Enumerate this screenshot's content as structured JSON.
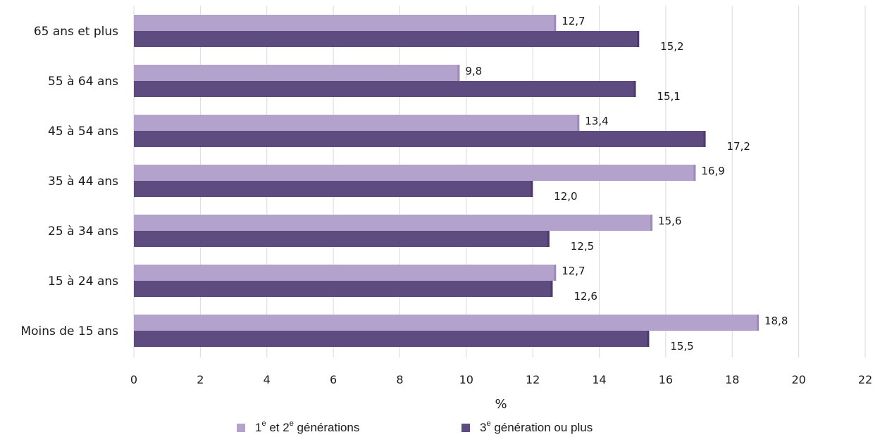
{
  "chart_data": {
    "type": "bar",
    "orientation": "horizontal",
    "categories": [
      "65 ans et plus",
      "55 à 64 ans",
      "45 à 54 ans",
      "35 à 44 ans",
      "25 à 34 ans",
      "15 à 24 ans",
      "Moins de 15 ans"
    ],
    "series": [
      {
        "name": "1e et 2e générations",
        "values": [
          12.7,
          9.8,
          13.4,
          16.9,
          15.6,
          12.7,
          18.8
        ],
        "labels": [
          "12,7",
          "9,8",
          "13,4",
          "16,9",
          "15,6",
          "12,7",
          "18,8"
        ],
        "color": "#b3a2cb"
      },
      {
        "name": "3e génération ou plus",
        "values": [
          15.2,
          15.1,
          17.2,
          12.0,
          12.5,
          12.6,
          15.5
        ],
        "labels": [
          "15,2",
          "15,1",
          "17,2",
          "12,0",
          "12,5",
          "12,6",
          "15,5"
        ],
        "color": "#5e4b7f"
      }
    ],
    "xlabel": "%",
    "ylabel": "",
    "xlim": [
      0,
      22
    ],
    "xticks": [
      0,
      2,
      4,
      6,
      8,
      10,
      12,
      14,
      16,
      18,
      20,
      22
    ],
    "grid": "vertical",
    "legend_position": "bottom"
  },
  "legend": {
    "s1_base1": "1",
    "s1_sup1": "e",
    "s1_mid": " et 2",
    "s1_sup2": "e",
    "s1_rest": " générations",
    "s2_base": "3",
    "s2_sup": "e",
    "s2_rest": " génération ou plus"
  }
}
